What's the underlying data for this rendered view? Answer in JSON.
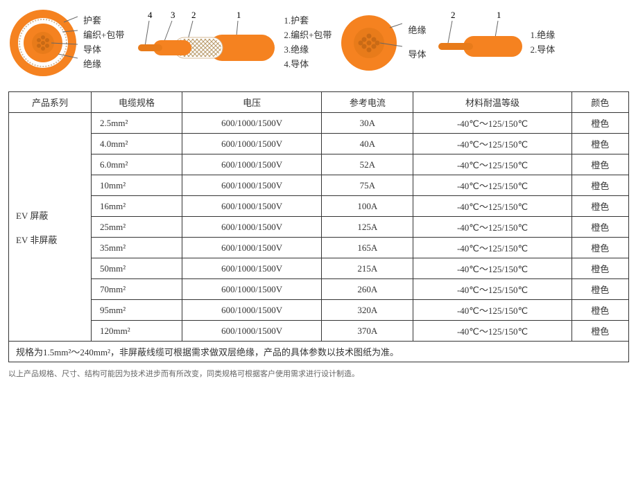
{
  "colors": {
    "orange": "#f58220",
    "orange_light": "#fdb76b",
    "conductor": "#e87b1a",
    "braid": "#d4b896",
    "line": "#666666",
    "text": "#333333",
    "bg": "#ffffff"
  },
  "diagram1": {
    "cross_labels": [
      "护套",
      "编织+包带",
      "导体",
      "绝缘"
    ],
    "side_callouts": [
      "4",
      "3",
      "2",
      "1"
    ],
    "legend": [
      "1.护套",
      "2.编织+包带",
      "3.绝缘",
      "4.导体"
    ]
  },
  "diagram2": {
    "cross_labels": [
      "绝缘",
      "导体"
    ],
    "side_callouts": [
      "2",
      "1"
    ],
    "legend": [
      "1.绝缘",
      "2.导体"
    ]
  },
  "table": {
    "headers": [
      "产品系列",
      "电缆规格",
      "电压",
      "参考电流",
      "材料耐温等级",
      "颜色"
    ],
    "series_label": "EV 屏蔽\nEV 非屏蔽",
    "rows": [
      {
        "spec": "2.5mm²",
        "voltage": "600/1000/1500V",
        "current": "30A",
        "temp": "-40℃～125/150℃",
        "color": "橙色"
      },
      {
        "spec": "4.0mm²",
        "voltage": "600/1000/1500V",
        "current": "40A",
        "temp": "-40℃～125/150℃",
        "color": "橙色"
      },
      {
        "spec": "6.0mm²",
        "voltage": "600/1000/1500V",
        "current": "52A",
        "temp": "-40℃～125/150℃",
        "color": "橙色"
      },
      {
        "spec": "10mm²",
        "voltage": "600/1000/1500V",
        "current": "75A",
        "temp": "-40℃～125/150℃",
        "color": "橙色"
      },
      {
        "spec": "16mm²",
        "voltage": "600/1000/1500V",
        "current": "100A",
        "temp": "-40℃～125/150℃",
        "color": "橙色"
      },
      {
        "spec": "25mm²",
        "voltage": "600/1000/1500V",
        "current": "125A",
        "temp": "-40℃～125/150℃",
        "color": "橙色"
      },
      {
        "spec": "35mm²",
        "voltage": "600/1000/1500V",
        "current": "165A",
        "temp": "-40℃～125/150℃",
        "color": "橙色"
      },
      {
        "spec": "50mm²",
        "voltage": "600/1000/1500V",
        "current": "215A",
        "temp": "-40℃～125/150℃",
        "color": "橙色"
      },
      {
        "spec": "70mm²",
        "voltage": "600/1000/1500V",
        "current": "260A",
        "temp": "-40℃～125/150℃",
        "color": "橙色"
      },
      {
        "spec": "95mm²",
        "voltage": "600/1000/1500V",
        "current": "320A",
        "temp": "-40℃～125/150℃",
        "color": "橙色"
      },
      {
        "spec": "120mm²",
        "voltage": "600/1000/1500V",
        "current": "370A",
        "temp": "-40℃～125/150℃",
        "color": "橙色"
      }
    ],
    "footnote": "规格为1.5mm²～240mm²，非屏蔽线缆可根据需求做双层绝缘，产品的具体参数以技术图纸为准。"
  },
  "bottom_note": "以上产品规格、尺寸、结构可能因为技术进步而有所改变，同类规格可根据客户使用需求进行设计制造。"
}
